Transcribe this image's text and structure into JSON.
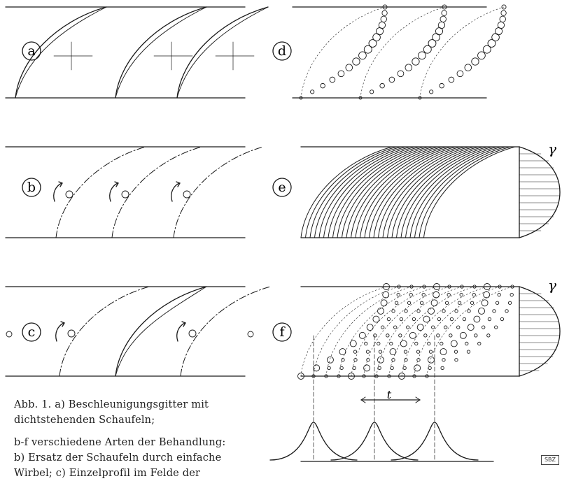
{
  "panels": {
    "a": "a",
    "b": "b",
    "c": "c",
    "d": "d",
    "e": "e",
    "f": "f"
  },
  "symbols": {
    "gamma_e": "γ",
    "gamma_f": "γ",
    "pitch": "t"
  },
  "caption": {
    "line1": "Abb. 1. a) Beschleunigungsgitter mit",
    "line2": "dichtstehenden Schaufeln;",
    "line3": "b-f verschiedene Arten der Behandlung:",
    "line4": "b) Ersatz der Schaufeln durch einfache",
    "line5": "Wirbel; c) Einzelprofil im Felde der"
  },
  "stamp": "SBZ",
  "colors": {
    "ink": "#1a1a1a",
    "paper": "#ffffff"
  }
}
